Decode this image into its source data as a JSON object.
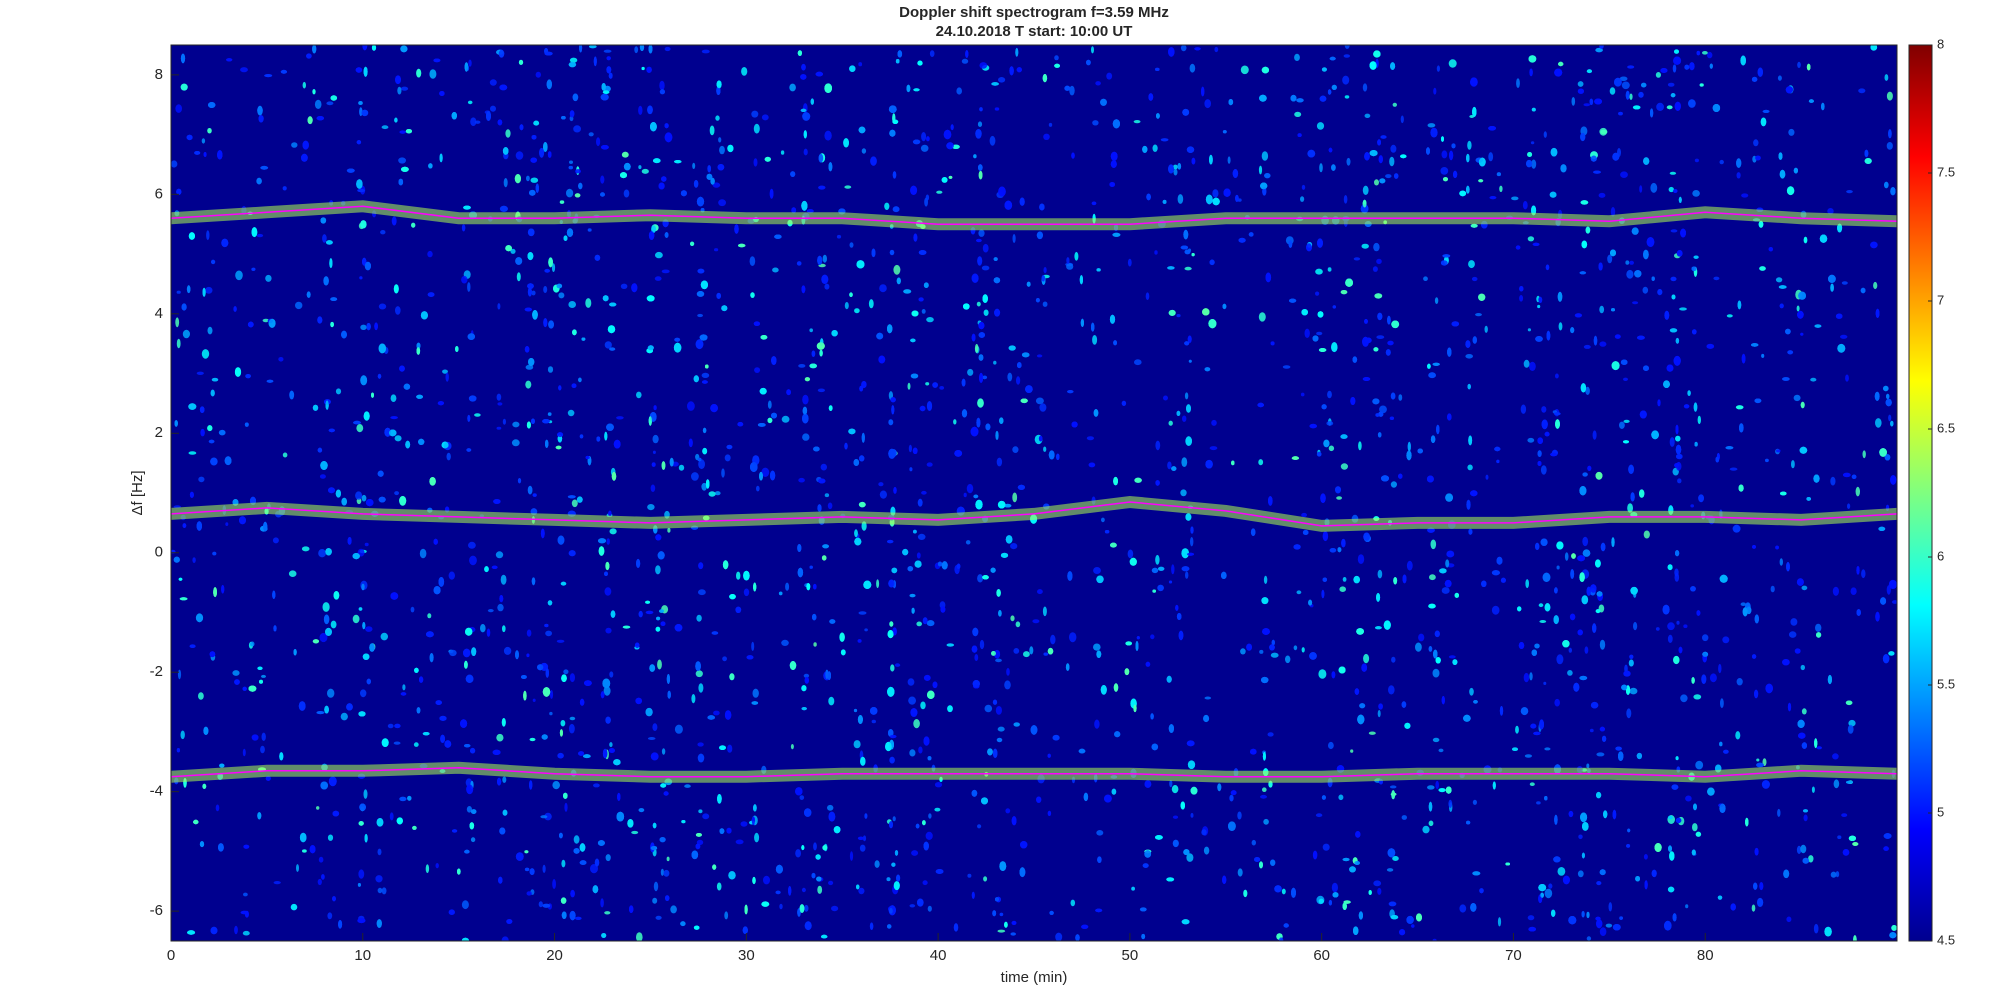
{
  "chart_data": {
    "type": "spectrogram",
    "title": "Doppler shift spectrogram f=3.59 MHz",
    "subtitle": "24.10.2018   T start: 10:00 UT",
    "xlabel": "time (min)",
    "ylabel": "Δf [Hz]",
    "xlim": [
      0,
      90
    ],
    "xticks": [
      0,
      10,
      20,
      30,
      40,
      50,
      60,
      70,
      80
    ],
    "ylim": [
      -6.5,
      8.5
    ],
    "yticks": [
      -6,
      -4,
      -2,
      0,
      2,
      4,
      6,
      8
    ],
    "clim": [
      4.5,
      8
    ],
    "cticks": [
      4.5,
      5,
      5.5,
      6,
      6.5,
      7,
      7.5,
      8
    ],
    "x": [
      0,
      5,
      10,
      15,
      20,
      25,
      30,
      35,
      40,
      45,
      50,
      55,
      60,
      65,
      70,
      75,
      80,
      85,
      90
    ],
    "series": [
      {
        "color": "#ff00ff",
        "values": [
          5.6,
          5.7,
          5.8,
          5.6,
          5.6,
          5.65,
          5.6,
          5.6,
          5.5,
          5.5,
          5.5,
          5.6,
          5.6,
          5.6,
          5.6,
          5.55,
          5.7,
          5.6,
          5.55
        ]
      },
      {
        "color": "#ff00ff",
        "values": [
          0.65,
          0.75,
          0.65,
          0.6,
          0.55,
          0.5,
          0.55,
          0.6,
          0.55,
          0.65,
          0.85,
          0.7,
          0.45,
          0.5,
          0.5,
          0.6,
          0.6,
          0.55,
          0.65
        ]
      },
      {
        "color": "#ff00ff",
        "values": [
          -3.75,
          -3.65,
          -3.65,
          -3.6,
          -3.7,
          -3.75,
          -3.75,
          -3.7,
          -3.7,
          -3.7,
          -3.7,
          -3.75,
          -3.75,
          -3.7,
          -3.7,
          -3.7,
          -3.75,
          -3.65,
          -3.7
        ]
      }
    ]
  }
}
